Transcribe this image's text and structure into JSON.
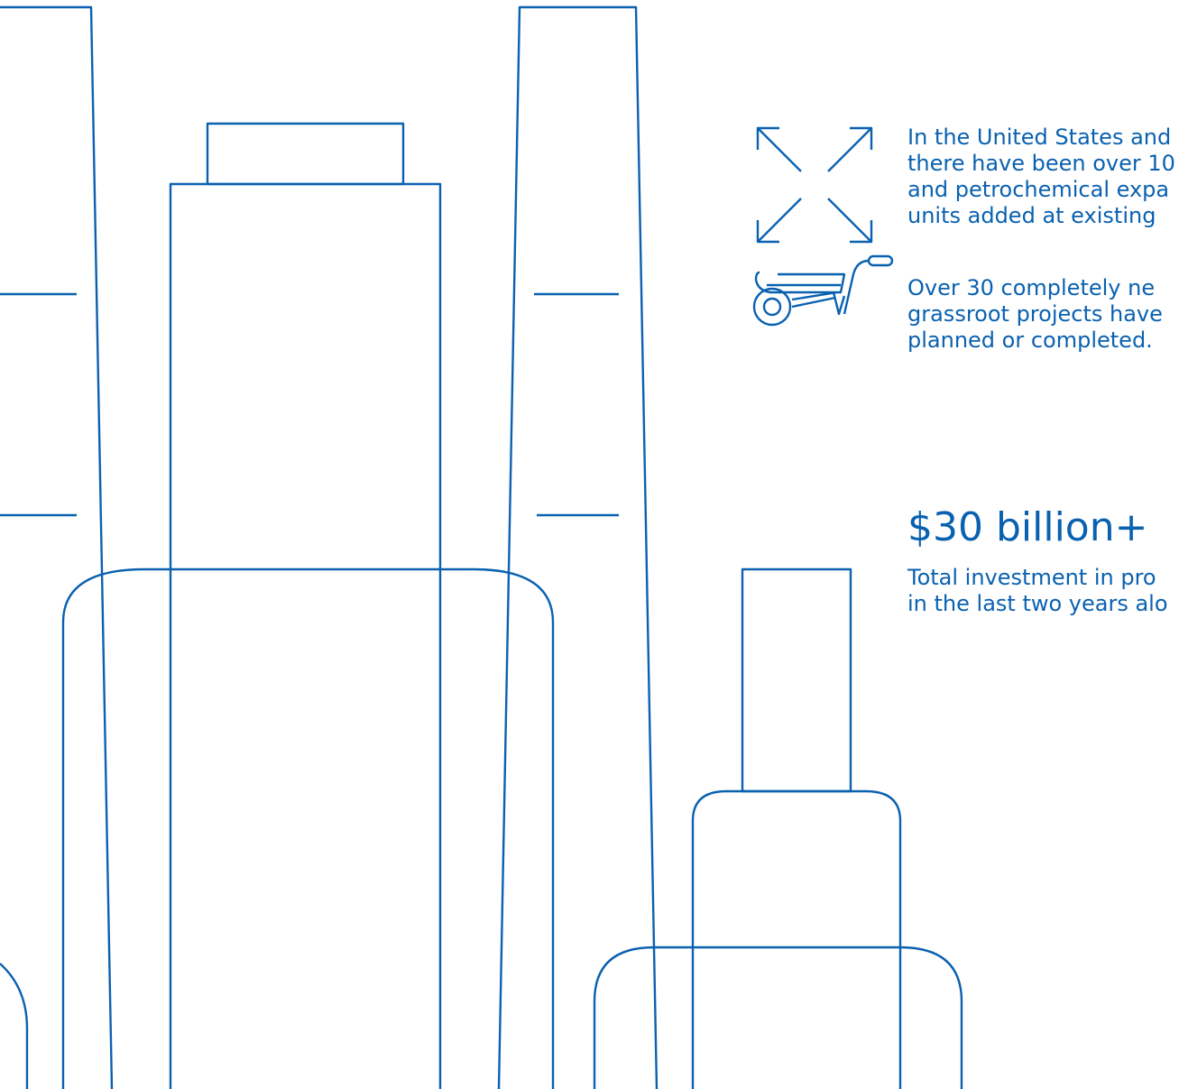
{
  "fact_expansions": {
    "icon": "expand-arrows-icon",
    "lines": [
      "In the United States and",
      "there have been over 10",
      "and petrochemical expa",
      "units added at existing"
    ]
  },
  "fact_grassroots": {
    "icon": "wheelbarrow-icon",
    "lines": [
      "Over 30 completely ne",
      "grassroot projects have",
      "planned or completed."
    ]
  },
  "investment": {
    "value": "$30 billion+",
    "lines": [
      "Total investment in pro",
      "in the last two years alo"
    ]
  },
  "colors": {
    "line": "#0a61b0",
    "background": "#ffffff"
  }
}
